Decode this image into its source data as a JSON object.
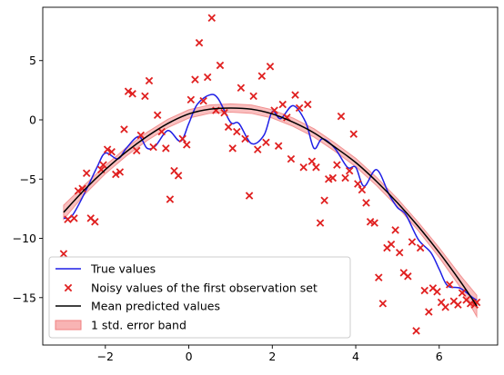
{
  "chart_data": {
    "type": "line",
    "title": "",
    "xlabel": "",
    "ylabel": "",
    "xlim": [
      -3.5,
      7.4
    ],
    "ylim": [
      -19.0,
      9.5
    ],
    "xticks": [
      -2,
      0,
      2,
      4,
      6
    ],
    "xtick_labels": [
      "−2",
      "0",
      "2",
      "4",
      "6"
    ],
    "yticks": [
      5,
      0,
      -5,
      -10,
      -15
    ],
    "ytick_labels": [
      "5",
      "0",
      "−5",
      "−10",
      "−15"
    ],
    "grid": false,
    "legend_position": "lower-left",
    "colors": {
      "true_values": "#1f1fe6",
      "noisy": "#e02020",
      "mean": "#000000",
      "band_fill": "#f8b4b4",
      "band_edge": "#f08080"
    },
    "series": [
      {
        "name": "True values",
        "kind": "line",
        "x": [
          -3.0,
          -2.8,
          -2.5,
          -2.2,
          -2.0,
          -1.7,
          -1.5,
          -1.2,
          -1.0,
          -0.8,
          -0.5,
          -0.2,
          0.0,
          0.2,
          0.5,
          0.7,
          1.0,
          1.2,
          1.5,
          1.8,
          2.0,
          2.2,
          2.5,
          2.8,
          3.0,
          3.2,
          3.5,
          3.8,
          4.0,
          4.2,
          4.5,
          4.8,
          5.0,
          5.2,
          5.5,
          5.8,
          6.0,
          6.2,
          6.5,
          6.8,
          6.9
        ],
        "y": [
          -8.3,
          -8.1,
          -6.2,
          -4.0,
          -2.8,
          -3.3,
          -2.4,
          -1.4,
          -2.4,
          -2.2,
          -0.9,
          -1.8,
          -0.3,
          1.3,
          2.1,
          1.8,
          -0.2,
          -0.3,
          -2.0,
          -1.3,
          0.7,
          0.1,
          1.2,
          -0.2,
          -2.4,
          -1.6,
          -2.4,
          -4.0,
          -4.0,
          -5.6,
          -4.2,
          -6.3,
          -7.4,
          -8.0,
          -10.1,
          -11.2,
          -12.6,
          -14.0,
          -14.2,
          -15.0,
          -15.2
        ]
      },
      {
        "name": "Noisy values of the first observation set",
        "kind": "scatter",
        "x": [
          -3.0,
          -2.9,
          -2.75,
          -2.65,
          -2.55,
          -2.45,
          -2.35,
          -2.25,
          -2.1,
          -2.05,
          -1.95,
          -1.85,
          -1.75,
          -1.65,
          -1.55,
          -1.45,
          -1.35,
          -1.25,
          -1.15,
          -1.05,
          -0.95,
          -0.85,
          -0.75,
          -0.65,
          -0.55,
          -0.45,
          -0.35,
          -0.25,
          -0.15,
          -0.05,
          0.05,
          0.15,
          0.25,
          0.35,
          0.45,
          0.55,
          0.65,
          0.75,
          0.85,
          0.95,
          1.05,
          1.15,
          1.25,
          1.35,
          1.45,
          1.55,
          1.65,
          1.75,
          1.85,
          1.95,
          2.05,
          2.15,
          2.25,
          2.35,
          2.45,
          2.55,
          2.65,
          2.75,
          2.85,
          2.95,
          3.05,
          3.15,
          3.25,
          3.35,
          3.45,
          3.55,
          3.65,
          3.75,
          3.85,
          3.95,
          4.05,
          4.15,
          4.25,
          4.35,
          4.45,
          4.55,
          4.65,
          4.75,
          4.85,
          4.95,
          5.05,
          5.15,
          5.25,
          5.35,
          5.45,
          5.55,
          5.65,
          5.75,
          5.85,
          5.95,
          6.05,
          6.15,
          6.25,
          6.35,
          6.45,
          6.55,
          6.65,
          6.75,
          6.85,
          6.9
        ],
        "y": [
          -11.3,
          -8.4,
          -8.3,
          -6.0,
          -5.8,
          -4.5,
          -8.3,
          -8.6,
          -4.2,
          -3.8,
          -2.5,
          -2.7,
          -4.6,
          -4.4,
          -0.8,
          2.4,
          2.2,
          -2.6,
          -1.3,
          2.0,
          3.3,
          -2.3,
          0.4,
          -1.0,
          -2.4,
          -6.7,
          -4.3,
          -4.7,
          -1.6,
          -2.1,
          1.7,
          3.4,
          6.5,
          1.6,
          3.6,
          8.6,
          0.8,
          4.6,
          0.6,
          -0.6,
          -2.4,
          -1.0,
          2.7,
          -1.6,
          -6.4,
          2.0,
          -2.5,
          3.7,
          -1.9,
          4.5,
          0.8,
          -2.2,
          1.3,
          0.2,
          -3.3,
          2.1,
          1.0,
          -4.0,
          1.3,
          -3.5,
          -4.0,
          -8.7,
          -6.8,
          -5.0,
          -4.9,
          -3.8,
          0.3,
          -4.9,
          -4.3,
          -1.2,
          -5.4,
          -5.9,
          -7.0,
          -8.6,
          -8.7,
          -13.3,
          -15.5,
          -10.8,
          -10.5,
          -9.3,
          -11.2,
          -12.9,
          -13.2,
          -10.3,
          -17.8,
          -10.8,
          -14.4,
          -16.2,
          -14.2,
          -14.5,
          -15.4,
          -15.8,
          -13.9,
          -15.3,
          -15.6,
          -14.6,
          -15.2,
          -15.5,
          -15.6,
          -15.4
        ]
      },
      {
        "name": "Mean predicted values",
        "kind": "line",
        "x": [
          -3.0,
          -2.5,
          -2.0,
          -1.5,
          -1.0,
          -0.5,
          0.0,
          0.5,
          1.0,
          1.5,
          2.0,
          2.5,
          3.0,
          3.5,
          4.0,
          4.5,
          5.0,
          5.5,
          6.0,
          6.5,
          6.9
        ],
        "y": [
          -7.8,
          -5.9,
          -4.2,
          -2.7,
          -1.4,
          -0.3,
          0.5,
          0.9,
          1.0,
          0.9,
          0.5,
          -0.2,
          -1.1,
          -2.3,
          -3.6,
          -5.2,
          -7.0,
          -9.0,
          -11.2,
          -13.6,
          -15.7
        ]
      },
      {
        "name": "1 std. error band",
        "kind": "band",
        "x": [
          -3.0,
          -2.5,
          -2.0,
          -1.5,
          -1.0,
          -0.5,
          0.0,
          0.5,
          1.0,
          1.5,
          2.0,
          2.5,
          3.0,
          3.5,
          4.0,
          4.5,
          5.0,
          5.5,
          6.0,
          6.5,
          6.9
        ],
        "lower": [
          -8.4,
          -6.3,
          -4.55,
          -3.05,
          -1.75,
          -0.65,
          0.15,
          0.55,
          0.65,
          0.55,
          0.15,
          -0.55,
          -1.45,
          -2.65,
          -3.95,
          -5.55,
          -7.35,
          -9.35,
          -11.6,
          -14.1,
          -16.6
        ],
        "upper": [
          -7.2,
          -5.5,
          -3.85,
          -2.35,
          -1.05,
          0.05,
          0.85,
          1.25,
          1.35,
          1.25,
          0.85,
          0.15,
          -0.75,
          -1.95,
          -3.25,
          -4.85,
          -6.65,
          -8.65,
          -10.8,
          -13.1,
          -14.8
        ]
      }
    ]
  }
}
